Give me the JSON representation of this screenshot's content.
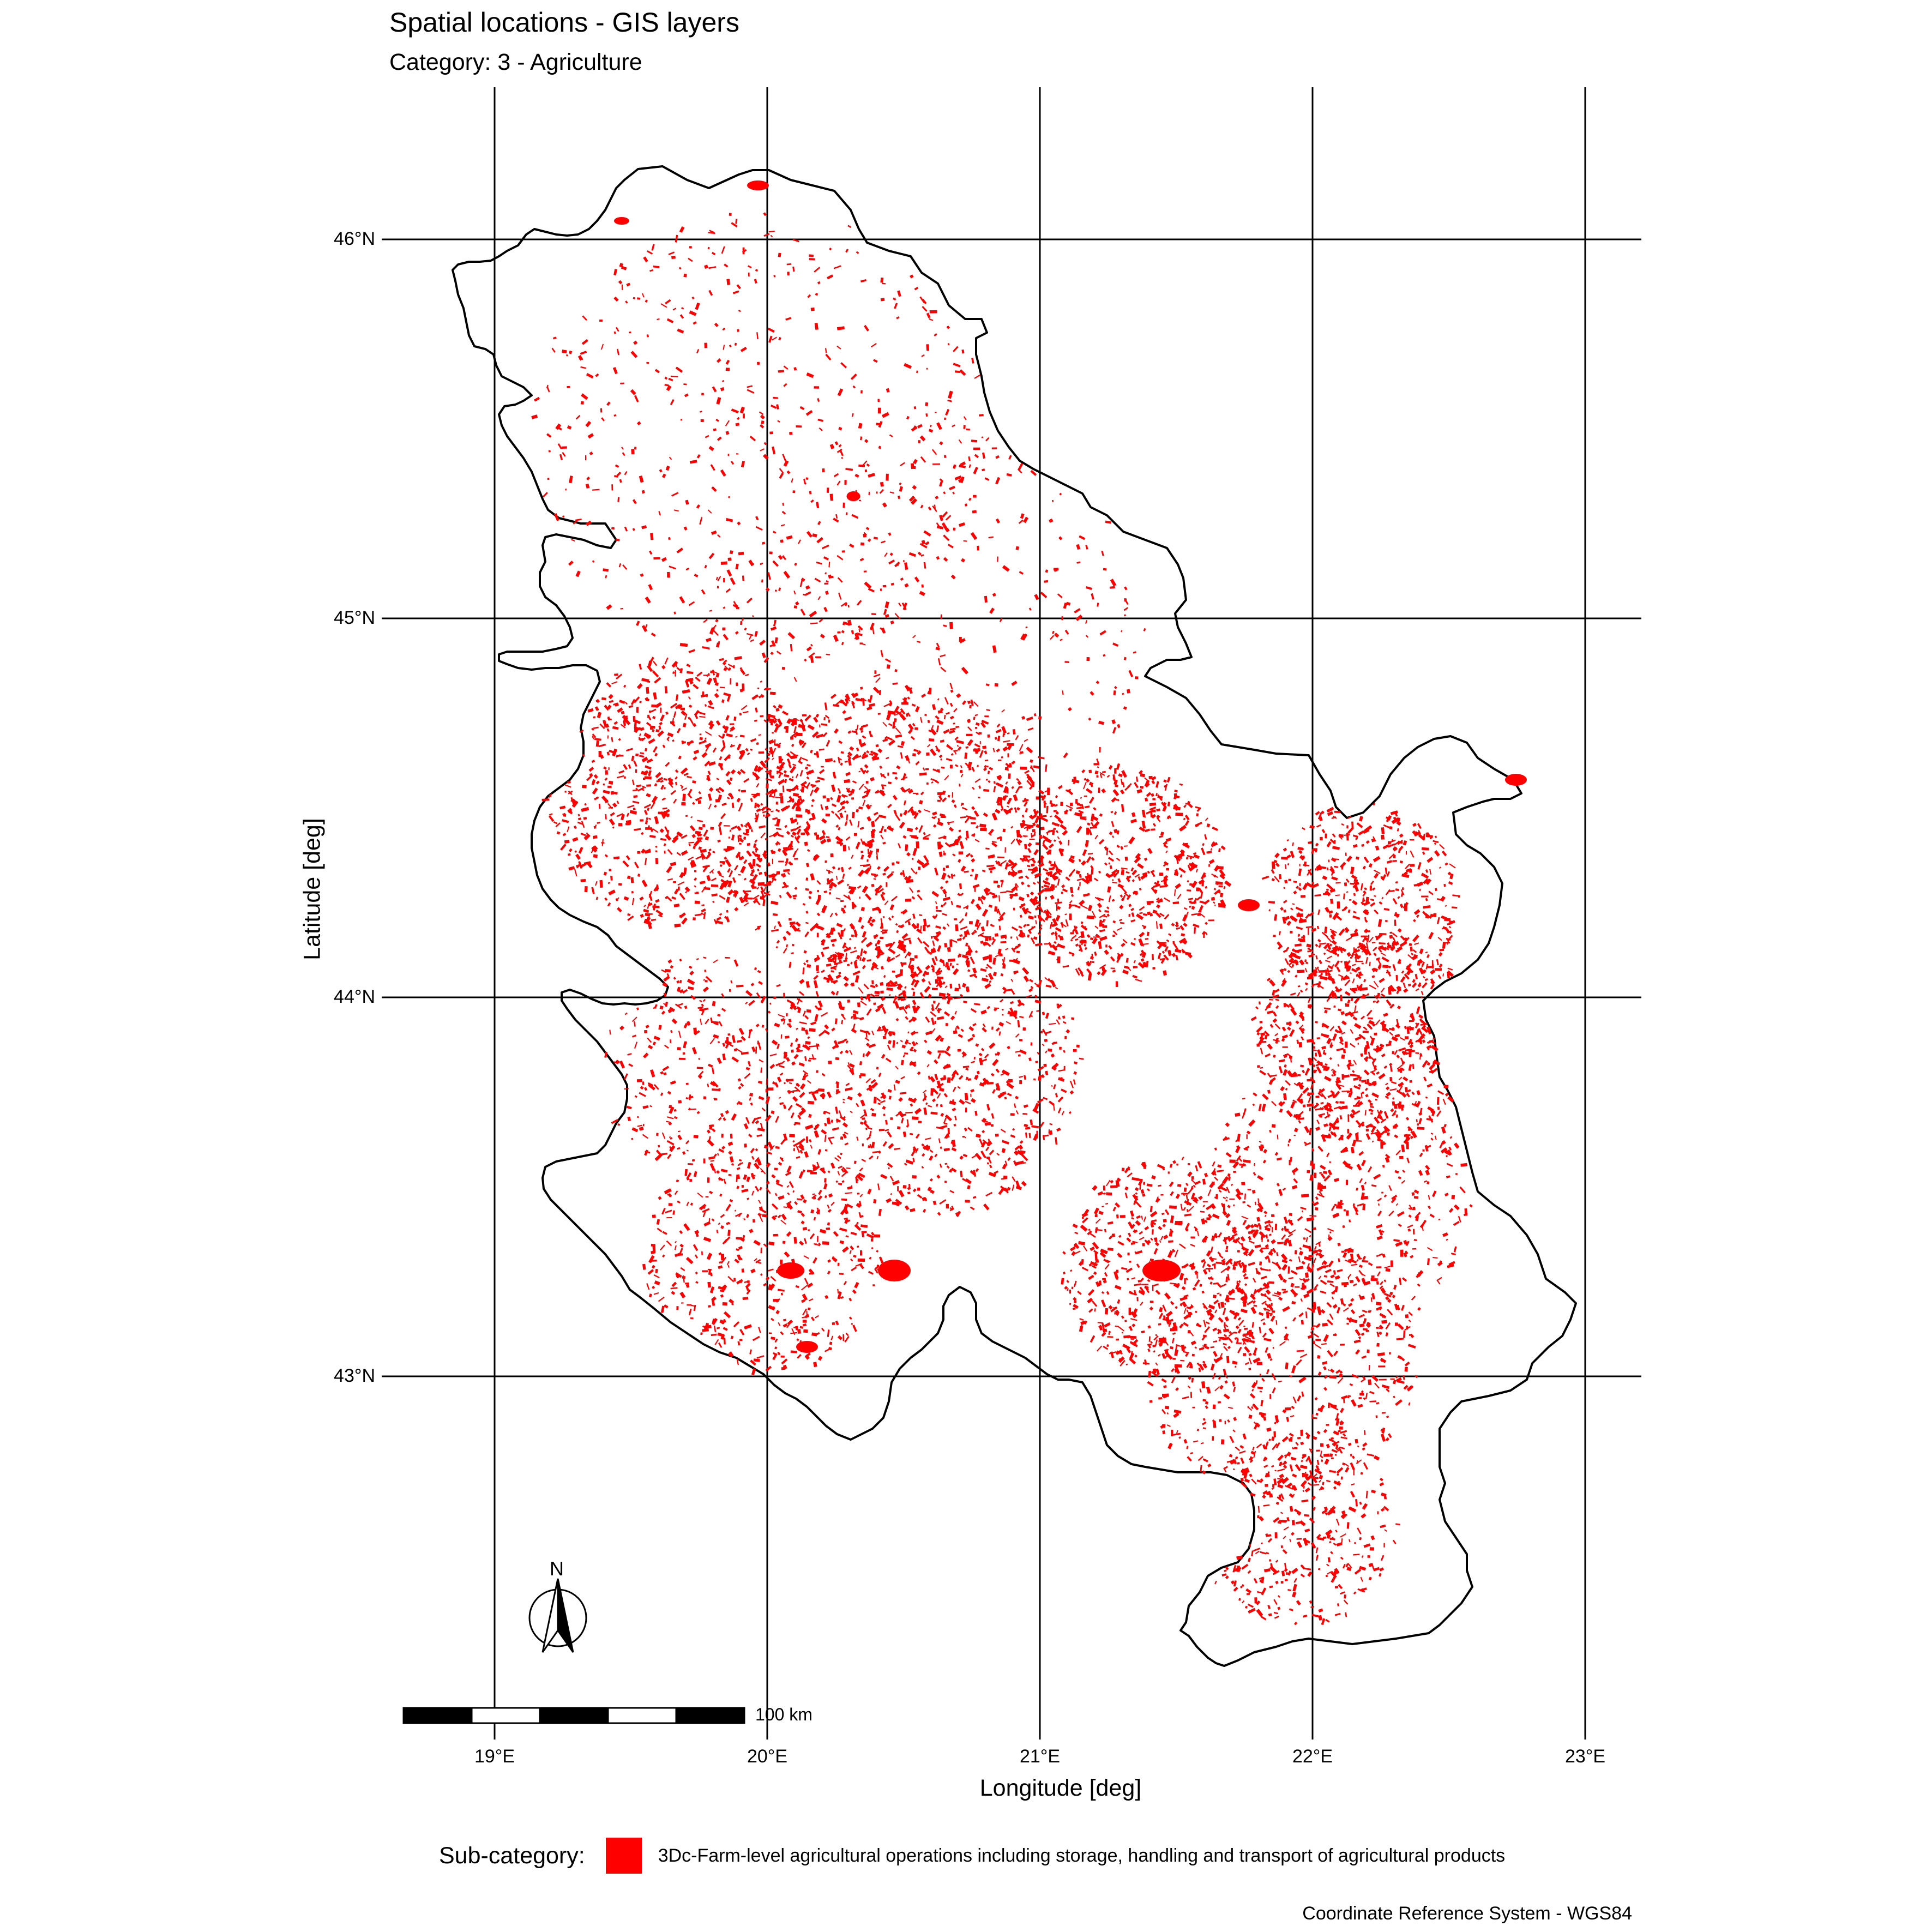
{
  "title": "Spatial locations - GIS layers",
  "subtitle": "Category: 3 - Agriculture",
  "axes": {
    "x_title": "Longitude [deg]",
    "y_title": "Latitude [deg]",
    "lon_ticks": [
      "19°E",
      "20°E",
      "21°E",
      "22°E",
      "23°E"
    ],
    "lat_ticks": [
      "46°N",
      "45°N",
      "44°N",
      "43°N"
    ],
    "lon_values": [
      19,
      20,
      21,
      22,
      23
    ],
    "lat_values": [
      46,
      45,
      44,
      43
    ]
  },
  "north_arrow": {
    "label": "N"
  },
  "scale_bar": {
    "label": "100 km",
    "segments": 5
  },
  "legend": {
    "title": "Sub-category:",
    "items": [
      {
        "label": "3Dc-Farm-level agricultural operations including storage, handling and transport of agricultural products",
        "color": "#ff0000"
      }
    ]
  },
  "caption": "Coordinate Reference System - WGS84",
  "colors": {
    "feature": "#ff0000",
    "boundary": "#000000",
    "grid": "#000000",
    "background": "#ffffff"
  },
  "map_data": {
    "region": "Serbia",
    "crs": "WGS84",
    "lon_range": [
      18.66,
      23.2
    ],
    "lat_range": [
      41.8,
      46.4
    ]
  }
}
